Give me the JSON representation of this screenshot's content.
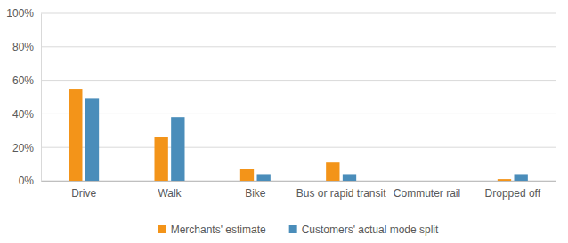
{
  "chart_data": {
    "type": "bar",
    "categories": [
      "Drive",
      "Walk",
      "Bike",
      "Bus or rapid transit",
      "Commuter rail",
      "Dropped off"
    ],
    "series": [
      {
        "name": "Merchants' estimate",
        "color": "#f39419",
        "values": [
          55,
          26,
          7,
          11,
          0,
          1
        ]
      },
      {
        "name": "Customers' actual mode split",
        "color": "#4a8dba",
        "values": [
          49,
          38,
          4,
          4,
          0,
          4
        ]
      }
    ],
    "ylim": [
      0,
      100
    ],
    "yticks": [
      {
        "value": 0,
        "label": "0%"
      },
      {
        "value": 20,
        "label": "20%"
      },
      {
        "value": 40,
        "label": "40%"
      },
      {
        "value": 60,
        "label": "60%"
      },
      {
        "value": 80,
        "label": "80%"
      },
      {
        "value": 100,
        "label": "100%"
      }
    ],
    "grid": true,
    "legend": "bottom"
  }
}
